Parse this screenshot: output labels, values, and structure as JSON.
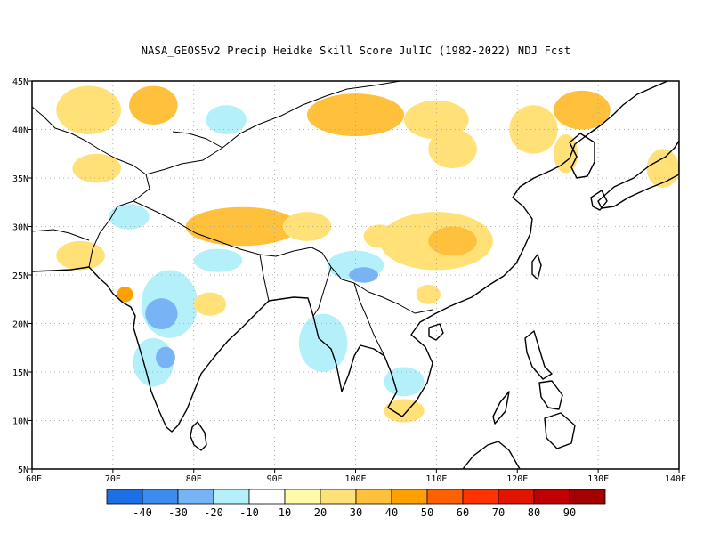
{
  "title": "NASA_GEOS5v2 Precip Heidke Skill Score JulIC (1982-2022) NDJ Fcst",
  "map": {
    "projection": "lat-lon",
    "lon_range": [
      60,
      140
    ],
    "lat_range": [
      5,
      45
    ],
    "grid": "dotted",
    "lon_ticks": [
      "60E",
      "70E",
      "80E",
      "90E",
      "100E",
      "110E",
      "120E",
      "130E",
      "140E"
    ],
    "lat_ticks": [
      "5N",
      "10N",
      "15N",
      "20N",
      "25N",
      "30N",
      "35N",
      "40N",
      "45N"
    ],
    "coastline_color": "#000000"
  },
  "colorbar": {
    "colors": [
      "#1e6ee6",
      "#3c8cf0",
      "#78b4f5",
      "#b4f0fa",
      "#ffffff",
      "#fffaaa",
      "#ffe178",
      "#ffc03c",
      "#ffa000",
      "#ff6000",
      "#ff3200",
      "#e11400",
      "#c00000",
      "#a50000"
    ],
    "labels": [
      "-40",
      "-30",
      "-20",
      "-10",
      "10",
      "20",
      "30",
      "40",
      "50",
      "60",
      "70",
      "80",
      "90"
    ]
  },
  "skill_patches": [
    {
      "lon": 67,
      "lat": 42,
      "rx": 4,
      "ry": 2.5,
      "value": 20
    },
    {
      "lon": 75,
      "lat": 42.5,
      "rx": 3,
      "ry": 2,
      "value": 30
    },
    {
      "lon": 84,
      "lat": 41,
      "rx": 2.5,
      "ry": 1.5,
      "value": -10
    },
    {
      "lon": 100,
      "lat": 41.5,
      "rx": 6,
      "ry": 2.2,
      "value": 30
    },
    {
      "lon": 110,
      "lat": 41,
      "rx": 4,
      "ry": 2,
      "value": 20
    },
    {
      "lon": 112,
      "lat": 38,
      "rx": 3,
      "ry": 2,
      "value": 20
    },
    {
      "lon": 122,
      "lat": 40,
      "rx": 3,
      "ry": 2.5,
      "value": 20
    },
    {
      "lon": 128,
      "lat": 42,
      "rx": 3.5,
      "ry": 2,
      "value": 30
    },
    {
      "lon": 126,
      "lat": 37.5,
      "rx": 1.5,
      "ry": 2,
      "value": 20
    },
    {
      "lon": 138,
      "lat": 36,
      "rx": 2,
      "ry": 2,
      "value": 20
    },
    {
      "lon": 68,
      "lat": 36,
      "rx": 3,
      "ry": 1.5,
      "value": 20
    },
    {
      "lon": 72,
      "lat": 31,
      "rx": 2.5,
      "ry": 1.3,
      "value": -10
    },
    {
      "lon": 86,
      "lat": 30,
      "rx": 7,
      "ry": 2,
      "value": 30
    },
    {
      "lon": 94,
      "lat": 30,
      "rx": 3,
      "ry": 1.5,
      "value": 20
    },
    {
      "lon": 110,
      "lat": 28.5,
      "rx": 7,
      "ry": 3,
      "value": 20
    },
    {
      "lon": 112,
      "lat": 28.5,
      "rx": 3,
      "ry": 1.5,
      "value": 30
    },
    {
      "lon": 66,
      "lat": 27,
      "rx": 3,
      "ry": 1.5,
      "value": 20
    },
    {
      "lon": 83,
      "lat": 26.5,
      "rx": 3,
      "ry": 1.2,
      "value": -10
    },
    {
      "lon": 100,
      "lat": 26,
      "rx": 3.5,
      "ry": 1.5,
      "value": -10
    },
    {
      "lon": 101,
      "lat": 25,
      "rx": 1.8,
      "ry": 0.8,
      "value": -20
    },
    {
      "lon": 77,
      "lat": 22,
      "rx": 3.5,
      "ry": 3.5,
      "value": -10
    },
    {
      "lon": 76,
      "lat": 21,
      "rx": 2,
      "ry": 1.6,
      "value": -20
    },
    {
      "lon": 75,
      "lat": 16,
      "rx": 2.5,
      "ry": 2.5,
      "value": -10
    },
    {
      "lon": 76.5,
      "lat": 16.5,
      "rx": 1.2,
      "ry": 1.1,
      "value": -20
    },
    {
      "lon": 71.5,
      "lat": 23,
      "rx": 1,
      "ry": 0.8,
      "value": 40
    },
    {
      "lon": 82,
      "lat": 22,
      "rx": 2,
      "ry": 1.2,
      "value": 20
    },
    {
      "lon": 96,
      "lat": 18,
      "rx": 3,
      "ry": 3,
      "value": -10
    },
    {
      "lon": 106,
      "lat": 14,
      "rx": 2.5,
      "ry": 1.5,
      "value": -10
    },
    {
      "lon": 106,
      "lat": 11,
      "rx": 2.5,
      "ry": 1.2,
      "value": 20
    },
    {
      "lon": 109,
      "lat": 23,
      "rx": 1.5,
      "ry": 1,
      "value": 20
    },
    {
      "lon": 103,
      "lat": 29,
      "rx": 2,
      "ry": 1.2,
      "value": 20
    }
  ]
}
